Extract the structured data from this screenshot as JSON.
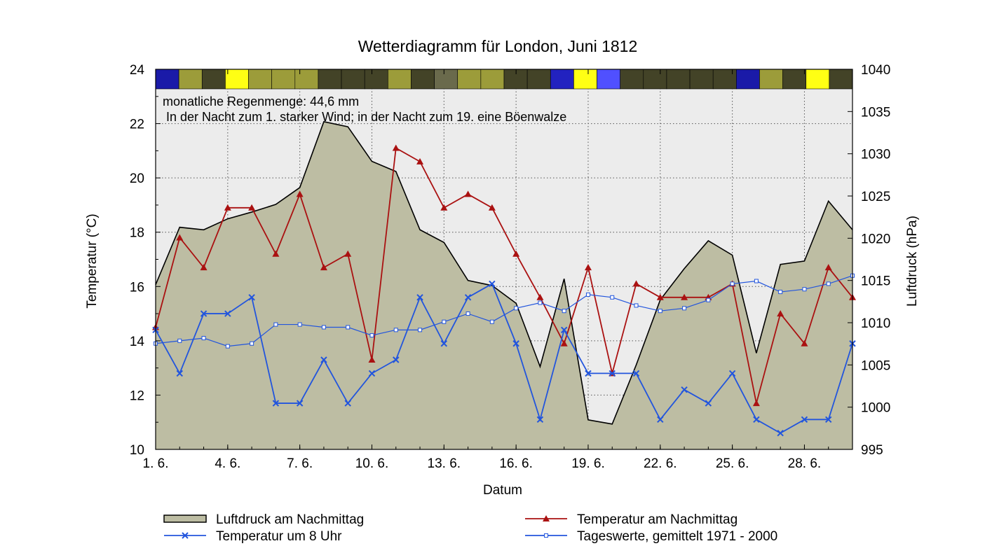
{
  "chart_data": {
    "type": "line",
    "title": "Wetterdiagramm für London, Juni 1812",
    "xlabel": "Datum",
    "ylabel_left": "Temperatur (°C)",
    "ylabel_right": "Luftdruck (hPa)",
    "ylim_left": [
      10,
      24
    ],
    "ylim_right": [
      995,
      1040
    ],
    "xlim": [
      1,
      30
    ],
    "grid": true,
    "legend_position": "bottom",
    "annotations": [
      "monatliche Regenmenge: 44,6 mm",
      "In der Nacht zum 1. starker Wind; in der Nacht zum 19. eine Böenwalze"
    ],
    "x_ticks": [
      {
        "x": 1,
        "label": "1. 6."
      },
      {
        "x": 4,
        "label": "4. 6."
      },
      {
        "x": 7,
        "label": "7. 6."
      },
      {
        "x": 10,
        "label": "10. 6."
      },
      {
        "x": 13,
        "label": "13. 6."
      },
      {
        "x": 16,
        "label": "16. 6."
      },
      {
        "x": 19,
        "label": "19. 6."
      },
      {
        "x": 22,
        "label": "22. 6."
      },
      {
        "x": 25,
        "label": "25. 6."
      },
      {
        "x": 28,
        "label": "28. 6."
      }
    ],
    "y_ticks_left": [
      "10",
      "12",
      "14",
      "16",
      "18",
      "20",
      "22",
      "24"
    ],
    "y_ticks_right": [
      "995",
      "1000",
      "1005",
      "1010",
      "1015",
      "1020",
      "1025",
      "1030",
      "1035",
      "1040"
    ],
    "days": [
      1,
      2,
      3,
      4,
      5,
      6,
      7,
      8,
      9,
      10,
      11,
      12,
      13,
      14,
      15,
      16,
      17,
      18,
      19,
      20,
      21,
      22,
      23,
      24,
      25,
      26,
      27,
      28,
      29,
      30
    ],
    "series": [
      {
        "name": "Luftdruck am Nachmittag",
        "axis": "right",
        "style": "area",
        "color": "#bdbda3",
        "values": [
          1014.5,
          1021.3,
          1021.0,
          1022.3,
          1023.1,
          1024.0,
          1026.0,
          1033.8,
          1033.2,
          1029.1,
          1027.9,
          1021.0,
          1019.5,
          1015.0,
          1014.4,
          1012.3,
          1004.8,
          1015.2,
          998.5,
          998.0,
          1005.0,
          1012.7,
          1016.4,
          1019.7,
          1018.0,
          1006.4,
          1016.9,
          1017.3,
          1024.4,
          1021.0
        ]
      },
      {
        "name": "Temperatur am Nachmittag",
        "axis": "left",
        "style": "line-triangle",
        "color": "#aa1111",
        "values": [
          14.5,
          17.8,
          16.7,
          18.9,
          18.9,
          17.2,
          19.4,
          16.7,
          17.2,
          13.3,
          21.1,
          20.6,
          18.9,
          19.4,
          18.9,
          17.2,
          15.6,
          13.9,
          16.7,
          12.8,
          16.1,
          15.6,
          15.6,
          15.6,
          16.1,
          11.7,
          15.0,
          13.9,
          16.7,
          15.6
        ]
      },
      {
        "name": "Temperatur um 8 Uhr",
        "axis": "left",
        "style": "line-x",
        "color": "#2255dd",
        "values": [
          14.4,
          12.8,
          15.0,
          15.0,
          15.6,
          11.7,
          11.7,
          13.3,
          11.7,
          12.8,
          13.3,
          15.6,
          13.9,
          15.6,
          16.1,
          13.9,
          11.1,
          14.4,
          12.8,
          12.8,
          12.8,
          11.1,
          12.2,
          11.7,
          12.8,
          11.1,
          10.6,
          11.1,
          11.1,
          13.9
        ]
      },
      {
        "name": "Tageswerte, gemittelt 1971 - 2000",
        "axis": "left",
        "style": "line-square",
        "color": "#2255dd",
        "values": [
          13.9,
          14.0,
          14.1,
          13.8,
          13.9,
          14.6,
          14.6,
          14.5,
          14.5,
          14.2,
          14.4,
          14.4,
          14.7,
          15.0,
          14.7,
          15.2,
          15.4,
          15.1,
          15.7,
          15.6,
          15.3,
          15.1,
          15.2,
          15.5,
          16.1,
          16.2,
          15.8,
          15.9,
          16.1,
          16.4
        ]
      }
    ],
    "weather_band": {
      "colors": [
        "#1a1aa8",
        "#9c9c3a",
        "#434327",
        "#ffff14",
        "#9c9c3a",
        "#9c9c3a",
        "#9c9c3a",
        "#434327",
        "#434327",
        "#434327",
        "#9c9c3a",
        "#434327",
        "#6a6a4c",
        "#9c9c3a",
        "#9c9c3a",
        "#434327",
        "#434327",
        "#2222c0",
        "#ffff14",
        "#5050ff",
        "#434327",
        "#434327",
        "#434327",
        "#434327",
        "#434327",
        "#1a1aa8",
        "#9c9c3a",
        "#434327",
        "#ffff14",
        "#434327"
      ]
    }
  }
}
